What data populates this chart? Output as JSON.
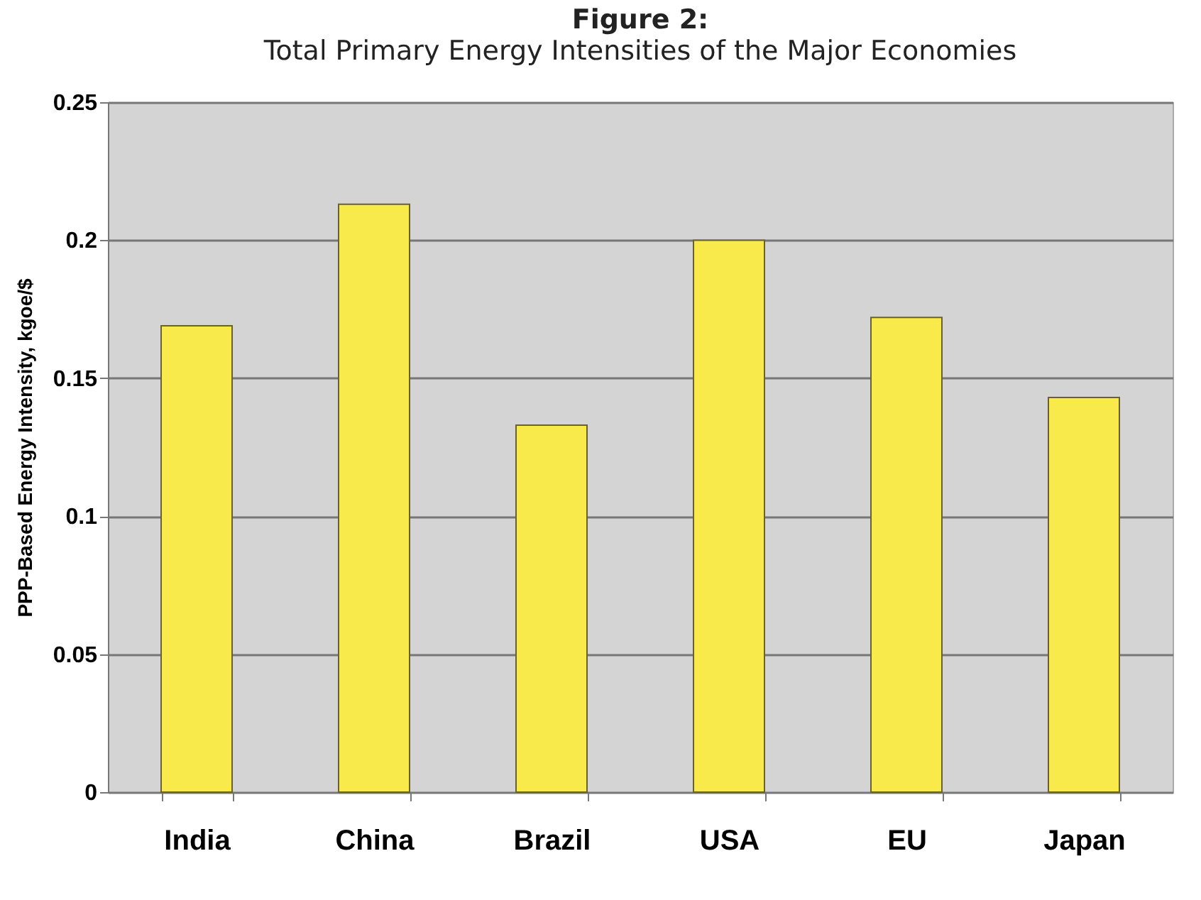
{
  "chart_data": {
    "type": "bar",
    "title": "Figure 2:",
    "subtitle": "Total Primary Energy Intensities of the Major Economies",
    "ylabel": "PPP-Based Energy Intensity, kgoe/$",
    "categories": [
      "India",
      "China",
      "Brazil",
      "USA",
      "EU",
      "Japan"
    ],
    "values": [
      0.169,
      0.213,
      0.133,
      0.2,
      0.172,
      0.143
    ],
    "color": "#f9ea4c",
    "ylim": [
      0,
      0.25
    ],
    "yticks": [
      0,
      0.05,
      0.1,
      0.15,
      0.2,
      0.25
    ],
    "grid": "y"
  }
}
